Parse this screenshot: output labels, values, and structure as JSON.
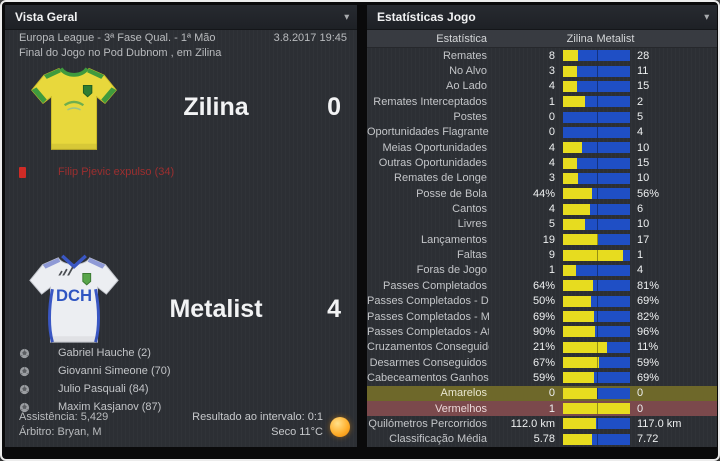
{
  "icons": {
    "dropdown": "▾"
  },
  "colors": {
    "home_bar": "#e7dc1f",
    "away_bar": "#1f4fc5",
    "yellow_row_bg": "#6e682a",
    "red_row_bg": "#7b494c",
    "sent_off_text": "#9c2f2f"
  },
  "left_panel": {
    "title": "Vista Geral",
    "competition": "Europa League - 3ª Fase Qual. - 1ª Mão",
    "datetime": "3.8.2017 19:45",
    "status_line": "Final do Jogo no Pod Dubnom , em Zilina",
    "home": {
      "name": "Zilina",
      "score": "0",
      "sent_off": "Filip Pjevic expulso (34)"
    },
    "away": {
      "name": "Metalist",
      "score": "4",
      "scorers": [
        "Gabriel Hauche (2)",
        "Giovanni Simeone (70)",
        "Julio Pasquali (84)",
        "Maxim Kasjanov (87)"
      ]
    },
    "attendance": "Assistência: 5,429",
    "referee": "Árbitro: Bryan, M",
    "half_time_result": "Resultado ao intervalo: 0:1",
    "weather": "Seco 11°C"
  },
  "right_panel": {
    "title": "Estatísticas Jogo",
    "columns": {
      "stat": "Estatística",
      "home": "Zilina",
      "away": "Metalist"
    },
    "rows": [
      {
        "label": "Remates",
        "home": "8",
        "away": "28"
      },
      {
        "label": "No Alvo",
        "home": "3",
        "away": "11"
      },
      {
        "label": "Ao Lado",
        "home": "4",
        "away": "15"
      },
      {
        "label": "Remates Interceptados",
        "home": "1",
        "away": "2"
      },
      {
        "label": "Postes",
        "home": "0",
        "away": "5"
      },
      {
        "label": "Oportunidades Flagrantes",
        "home": "0",
        "away": "4"
      },
      {
        "label": "Meias Oportunidades",
        "home": "4",
        "away": "10"
      },
      {
        "label": "Outras Oportunidades",
        "home": "4",
        "away": "15"
      },
      {
        "label": "Remates de Longe",
        "home": "3",
        "away": "10"
      },
      {
        "label": "Posse de Bola",
        "home": "44%",
        "away": "56%"
      },
      {
        "label": "Cantos",
        "home": "4",
        "away": "6"
      },
      {
        "label": "Livres",
        "home": "5",
        "away": "10"
      },
      {
        "label": "Lançamentos",
        "home": "19",
        "away": "17"
      },
      {
        "label": "Faltas",
        "home": "9",
        "away": "1"
      },
      {
        "label": "Foras de Jogo",
        "home": "1",
        "away": "4"
      },
      {
        "label": "Passes Completados",
        "home": "64%",
        "away": "81%"
      },
      {
        "label": "Passes Completados - Defesa",
        "home": "50%",
        "away": "69%"
      },
      {
        "label": "Passes Completados - Meio..",
        "home": "69%",
        "away": "82%"
      },
      {
        "label": "Passes Completados - Ataq..",
        "home": "90%",
        "away": "96%"
      },
      {
        "label": "Cruzamentos Conseguidos",
        "home": "21%",
        "away": "11%"
      },
      {
        "label": "Desarmes Conseguidos",
        "home": "67%",
        "away": "59%"
      },
      {
        "label": "Cabeceamentos Ganhos",
        "home": "59%",
        "away": "69%"
      },
      {
        "label": "Amarelos",
        "home": "0",
        "away": "0",
        "highlight": "yellow"
      },
      {
        "label": "Vermelhos",
        "home": "1",
        "away": "0",
        "highlight": "red"
      },
      {
        "label": "Quilómetros Percorridos",
        "home": "112.0 km",
        "away": "117.0 km"
      },
      {
        "label": "Classificação Média",
        "home": "5.78",
        "away": "7.72"
      }
    ]
  }
}
